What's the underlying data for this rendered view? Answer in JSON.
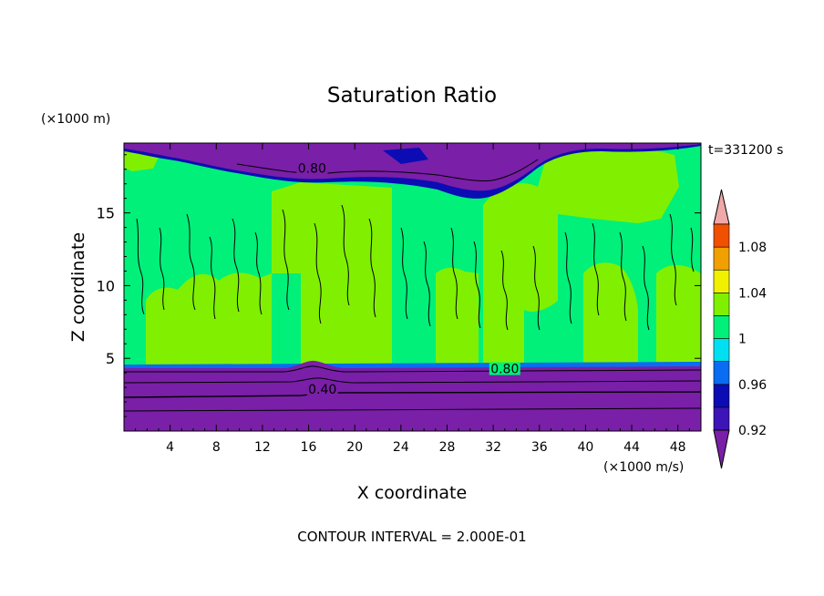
{
  "chart_data": {
    "type": "heatmap",
    "title": "Saturation Ratio",
    "xlabel": "X coordinate",
    "ylabel": "Z coordinate",
    "x_unit": "(×1000 m/s)",
    "y_unit": "(×1000 m)",
    "time_label": "t=331200 s",
    "footer": "CONTOUR INTERVAL = 2.000E-01",
    "xlim": [
      0,
      50
    ],
    "ylim": [
      0,
      19.8
    ],
    "x_ticks": [
      4,
      8,
      12,
      16,
      20,
      24,
      28,
      32,
      36,
      40,
      44,
      48
    ],
    "y_ticks": [
      5,
      10,
      15
    ],
    "contour_labels": [
      {
        "text": "0.80",
        "x": 16.3,
        "z": 17.9
      },
      {
        "text": "0.80",
        "x": 33.0,
        "z": 4.1
      },
      {
        "text": "0.40",
        "x": 17.2,
        "z": 2.7
      }
    ],
    "colorbar": {
      "levels": [
        0.92,
        0.94,
        0.96,
        0.98,
        1.0,
        1.02,
        1.04,
        1.06,
        1.08,
        1.1
      ],
      "tick_labels": [
        {
          "level": 0.92,
          "text": "0.92"
        },
        {
          "level": 0.96,
          "text": "0.96"
        },
        {
          "level": 1.0,
          "text": "1"
        },
        {
          "level": 1.04,
          "text": "1.04"
        },
        {
          "level": 1.08,
          "text": "1.08"
        }
      ],
      "colors": [
        "#7a1fa8",
        "#3c14b8",
        "#0c0cb4",
        "#0a6cf0",
        "#00e0f0",
        "#00f07a",
        "#80f000",
        "#f0f000",
        "#f0a000",
        "#f05000",
        "#e81818",
        "#f0a8a8"
      ]
    }
  }
}
